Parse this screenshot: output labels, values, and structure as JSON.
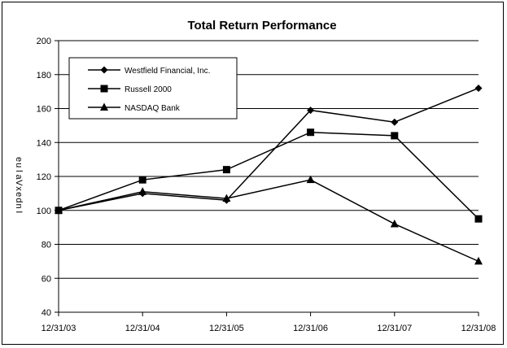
{
  "chart_data": {
    "type": "line",
    "title": "Total Return Performance",
    "ylabel": "Index Value",
    "xlabel": "",
    "categories": [
      "12/31/03",
      "12/31/04",
      "12/31/05",
      "12/31/06",
      "12/31/07",
      "12/31/08"
    ],
    "ylim": [
      40,
      200
    ],
    "yticks": [
      40,
      60,
      80,
      100,
      120,
      140,
      160,
      180,
      200
    ],
    "grid": true,
    "legend_placement": "top-left",
    "series": [
      {
        "name": "Westfield Financial, Inc.",
        "marker": "diamond",
        "values": [
          100,
          110,
          106,
          159,
          152,
          172
        ]
      },
      {
        "name": "Russell 2000",
        "marker": "square",
        "values": [
          100,
          118,
          124,
          146,
          144,
          95
        ]
      },
      {
        "name": "NASDAQ Bank",
        "marker": "triangle",
        "values": [
          100,
          111,
          107,
          118,
          92,
          70
        ]
      }
    ],
    "colors": {
      "line": "#000000",
      "grid": "#000000",
      "background": "#ffffff"
    }
  }
}
